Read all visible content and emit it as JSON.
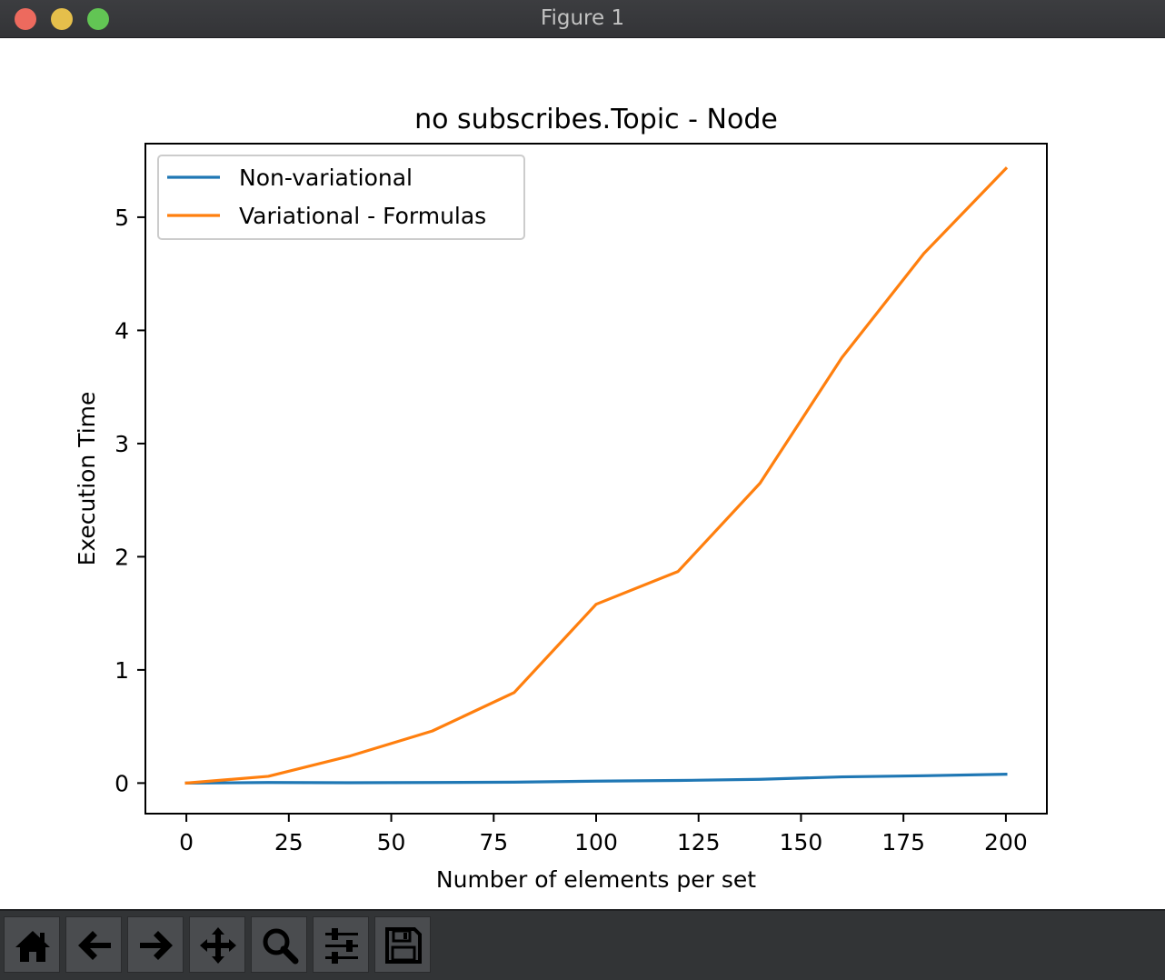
{
  "window": {
    "title": "Figure 1"
  },
  "toolbar": {
    "buttons": [
      {
        "icon": "home-icon",
        "name": "home-button"
      },
      {
        "icon": "back-arrow-icon",
        "name": "back-button"
      },
      {
        "icon": "forward-arrow-icon",
        "name": "forward-button"
      },
      {
        "icon": "pan-icon",
        "name": "pan-button"
      },
      {
        "icon": "zoom-icon",
        "name": "zoom-button"
      },
      {
        "icon": "sliders-icon",
        "name": "configure-subplots-button"
      },
      {
        "icon": "save-icon",
        "name": "save-button"
      }
    ]
  },
  "chart_data": {
    "type": "line",
    "title": "no subscribes.Topic - Node",
    "xlabel": "Number of elements per set",
    "ylabel": "Execution Time",
    "xlim": [
      -10,
      210
    ],
    "ylim": [
      -0.27,
      5.65
    ],
    "xticks": [
      0,
      25,
      50,
      75,
      100,
      125,
      150,
      175,
      200
    ],
    "xtick_labels": [
      "0",
      "25",
      "50",
      "75",
      "100",
      "125",
      "150",
      "175",
      "200"
    ],
    "yticks": [
      0,
      1,
      2,
      3,
      4,
      5
    ],
    "ytick_labels": [
      "0",
      "1",
      "2",
      "3",
      "4",
      "5"
    ],
    "grid": false,
    "legend_position": "upper-left",
    "x": [
      0,
      20,
      40,
      60,
      80,
      100,
      120,
      140,
      160,
      180,
      200
    ],
    "series": [
      {
        "name": "Non-variational",
        "color": "#1f77b4",
        "values": [
          0.0,
          0.005,
          0.003,
          0.005,
          0.008,
          0.017,
          0.023,
          0.033,
          0.055,
          0.065,
          0.078
        ]
      },
      {
        "name": "Variational - Formulas",
        "color": "#ff7f0e",
        "values": [
          0.0,
          0.06,
          0.24,
          0.46,
          0.8,
          1.58,
          1.87,
          2.65,
          3.76,
          4.68,
          5.43
        ]
      }
    ]
  }
}
